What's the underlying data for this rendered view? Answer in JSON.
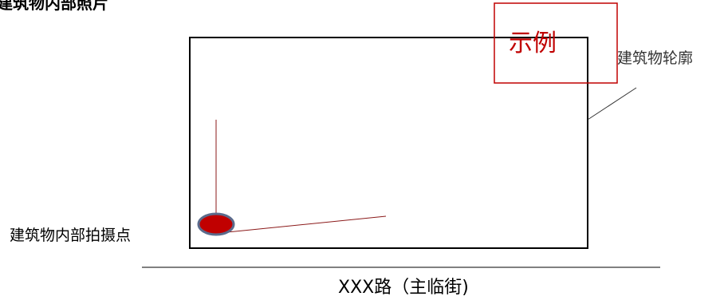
{
  "title": "建筑物内部照片",
  "legend_label": "示例",
  "building_outline_label": "建筑物轮廓",
  "photo_point_label": "建筑物内部拍摄点",
  "street_label": "XXX路（主临街)",
  "colors": {
    "building_outline": "#000000",
    "legend_box": "#c00000",
    "legend_text": "#c00000",
    "camera_marker_fill": "#c00000",
    "camera_marker_stroke": "#5b6b8c",
    "view_lines": "#8b1a1a",
    "street_line": "#000000",
    "leader_line": "#333333"
  }
}
